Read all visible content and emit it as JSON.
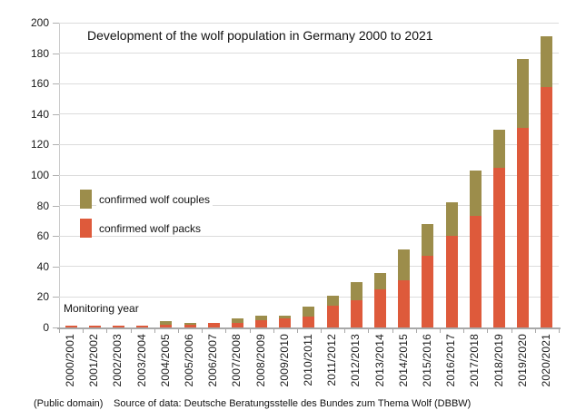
{
  "title": "Development of the wolf population in Germany 2000 to 2021",
  "monitoring_year_label": "Monitoring year",
  "footer": {
    "license": "(Public domain)",
    "source": "Source of data: Deutsche Beratungsstelle des Bundes zum Thema Wolf (DBBW)"
  },
  "colors": {
    "packs": "#DE5A3B",
    "couples": "#9C8D4B",
    "gridline": "#DCDCDC",
    "axis": "#A8A8A8",
    "text": "#111111"
  },
  "chart_data": {
    "type": "bar",
    "stacked": true,
    "title": "Development of the wolf population in Germany 2000 to 2021",
    "xlabel": "Monitoring year",
    "ylabel": "",
    "ylim": [
      0,
      200
    ],
    "ytick_step": 20,
    "grid": true,
    "legend_position": "middle-left",
    "categories": [
      "2000/2001",
      "2001/2002",
      "2002/2003",
      "2003/2004",
      "2004/2005",
      "2005/2006",
      "2006/2007",
      "2007/2008",
      "2008/2009",
      "2009/2010",
      "2010/2011",
      "2011/2012",
      "2012/2013",
      "2013/2014",
      "2014/2015",
      "2015/2016",
      "2016/2017",
      "2017/2018",
      "2018/2019",
      "2019/2020",
      "2020/2021"
    ],
    "series": [
      {
        "name": "confirmed wolf packs",
        "color": "#DE5A3B",
        "values": [
          1,
          1,
          1,
          1,
          2,
          2,
          3,
          3,
          5,
          6,
          7,
          14,
          18,
          25,
          31,
          47,
          60,
          73,
          105,
          131,
          158
        ]
      },
      {
        "name": "confirmed wolf couples",
        "color": "#9C8D4B",
        "values": [
          0,
          0,
          0,
          0,
          2,
          1,
          0,
          3,
          3,
          2,
          7,
          7,
          12,
          11,
          20,
          21,
          22,
          30,
          25,
          45,
          33
        ]
      }
    ],
    "totals": [
      1,
      1,
      1,
      1,
      4,
      3,
      3,
      6,
      8,
      8,
      14,
      21,
      30,
      36,
      51,
      68,
      82,
      103,
      130,
      176,
      191
    ]
  }
}
